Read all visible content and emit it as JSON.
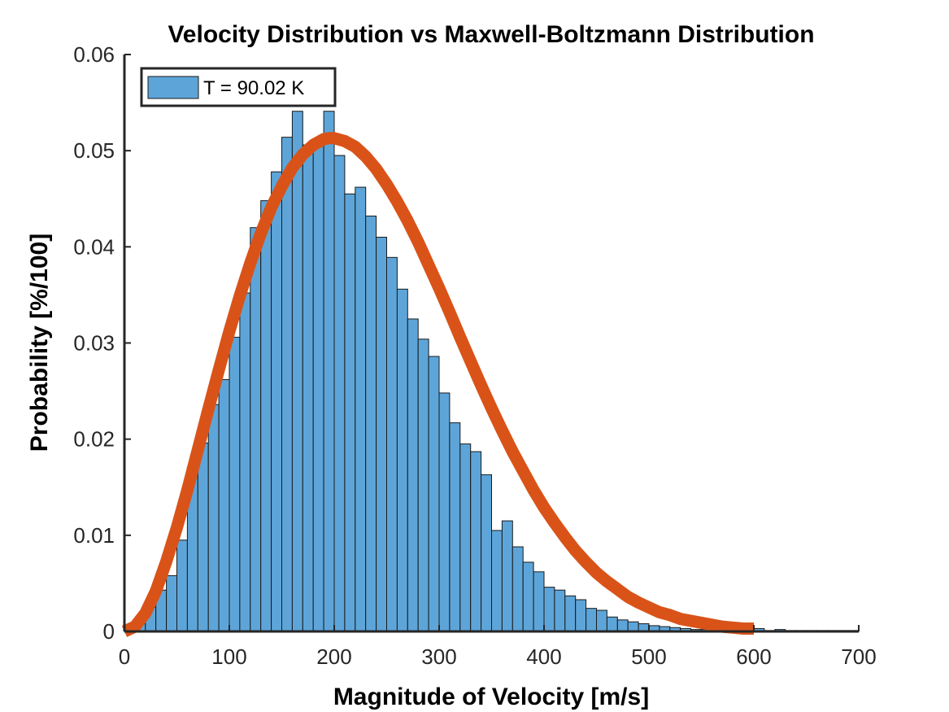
{
  "chart_data": {
    "type": "bar",
    "title": "Velocity Distribution vs Maxwell-Boltzmann Distribution",
    "xlabel": "Magnitude of Velocity [m/s]",
    "ylabel": "Probability [%/100]",
    "xlim": [
      0,
      700
    ],
    "ylim": [
      0,
      0.06
    ],
    "xticks": [
      "0",
      "100",
      "200",
      "300",
      "400",
      "500",
      "600",
      "700"
    ],
    "yticks": [
      "0",
      "0.01",
      "0.02",
      "0.03",
      "0.04",
      "0.05",
      "0.06"
    ],
    "grid": false,
    "legend_position": "top-left",
    "colors": {
      "bars": "#5DA5D9",
      "bar_edge": "#1a1a1a",
      "curve": "#D95319"
    },
    "histogram": {
      "name": "T = 90.02 K",
      "bin_width": 10,
      "bin_start": 0,
      "values": [
        0.0001,
        0.0008,
        0.0025,
        0.0043,
        0.0058,
        0.0095,
        0.0171,
        0.0196,
        0.0236,
        0.0262,
        0.0306,
        0.0352,
        0.042,
        0.0448,
        0.0478,
        0.0514,
        0.0541,
        0.0506,
        0.0505,
        0.0541,
        0.0495,
        0.0455,
        0.0462,
        0.0432,
        0.041,
        0.0389,
        0.0356,
        0.0325,
        0.0304,
        0.0286,
        0.0248,
        0.0217,
        0.0195,
        0.0187,
        0.0163,
        0.0105,
        0.0115,
        0.0088,
        0.0072,
        0.0062,
        0.0046,
        0.0043,
        0.0037,
        0.0033,
        0.0024,
        0.0022,
        0.0015,
        0.0012,
        0.001,
        0.0008,
        0.0006,
        0.0005,
        0.0004,
        0.0003,
        0.0002,
        0.0002,
        0.0001,
        0.0001,
        0.0001,
        0.0001,
        0.0003,
        0.0001,
        0.0002,
        0.0001,
        0.0001,
        0.0001,
        0.0001,
        0.0001,
        0.0001,
        0.0001
      ]
    },
    "curve": {
      "type": "line",
      "x": [
        0,
        10,
        20,
        30,
        40,
        50,
        60,
        70,
        80,
        90,
        100,
        110,
        120,
        130,
        140,
        150,
        160,
        170,
        180,
        190,
        195,
        200,
        210,
        220,
        230,
        240,
        250,
        260,
        270,
        280,
        290,
        300,
        310,
        320,
        330,
        340,
        350,
        360,
        370,
        380,
        390,
        400,
        410,
        420,
        430,
        440,
        450,
        460,
        470,
        480,
        490,
        500,
        510,
        520,
        530,
        540,
        550,
        560,
        570,
        580,
        590,
        600
      ],
      "y": [
        0,
        0.0005,
        0.0019,
        0.0042,
        0.0073,
        0.0108,
        0.0147,
        0.0189,
        0.0231,
        0.0272,
        0.0312,
        0.0349,
        0.0383,
        0.0414,
        0.0441,
        0.0463,
        0.0482,
        0.0496,
        0.0506,
        0.0512,
        0.0513,
        0.0513,
        0.051,
        0.0504,
        0.0494,
        0.0481,
        0.0465,
        0.0447,
        0.0427,
        0.0405,
        0.0381,
        0.0357,
        0.0332,
        0.0306,
        0.0281,
        0.0256,
        0.0232,
        0.0209,
        0.0187,
        0.0167,
        0.0147,
        0.0129,
        0.0113,
        0.0098,
        0.0084,
        0.0072,
        0.0061,
        0.0052,
        0.0044,
        0.0036,
        0.003,
        0.0025,
        0.002,
        0.0017,
        0.0013,
        0.0011,
        0.0009,
        0.0007,
        0.0005,
        0.0004,
        0.0003,
        0.0003
      ]
    }
  }
}
